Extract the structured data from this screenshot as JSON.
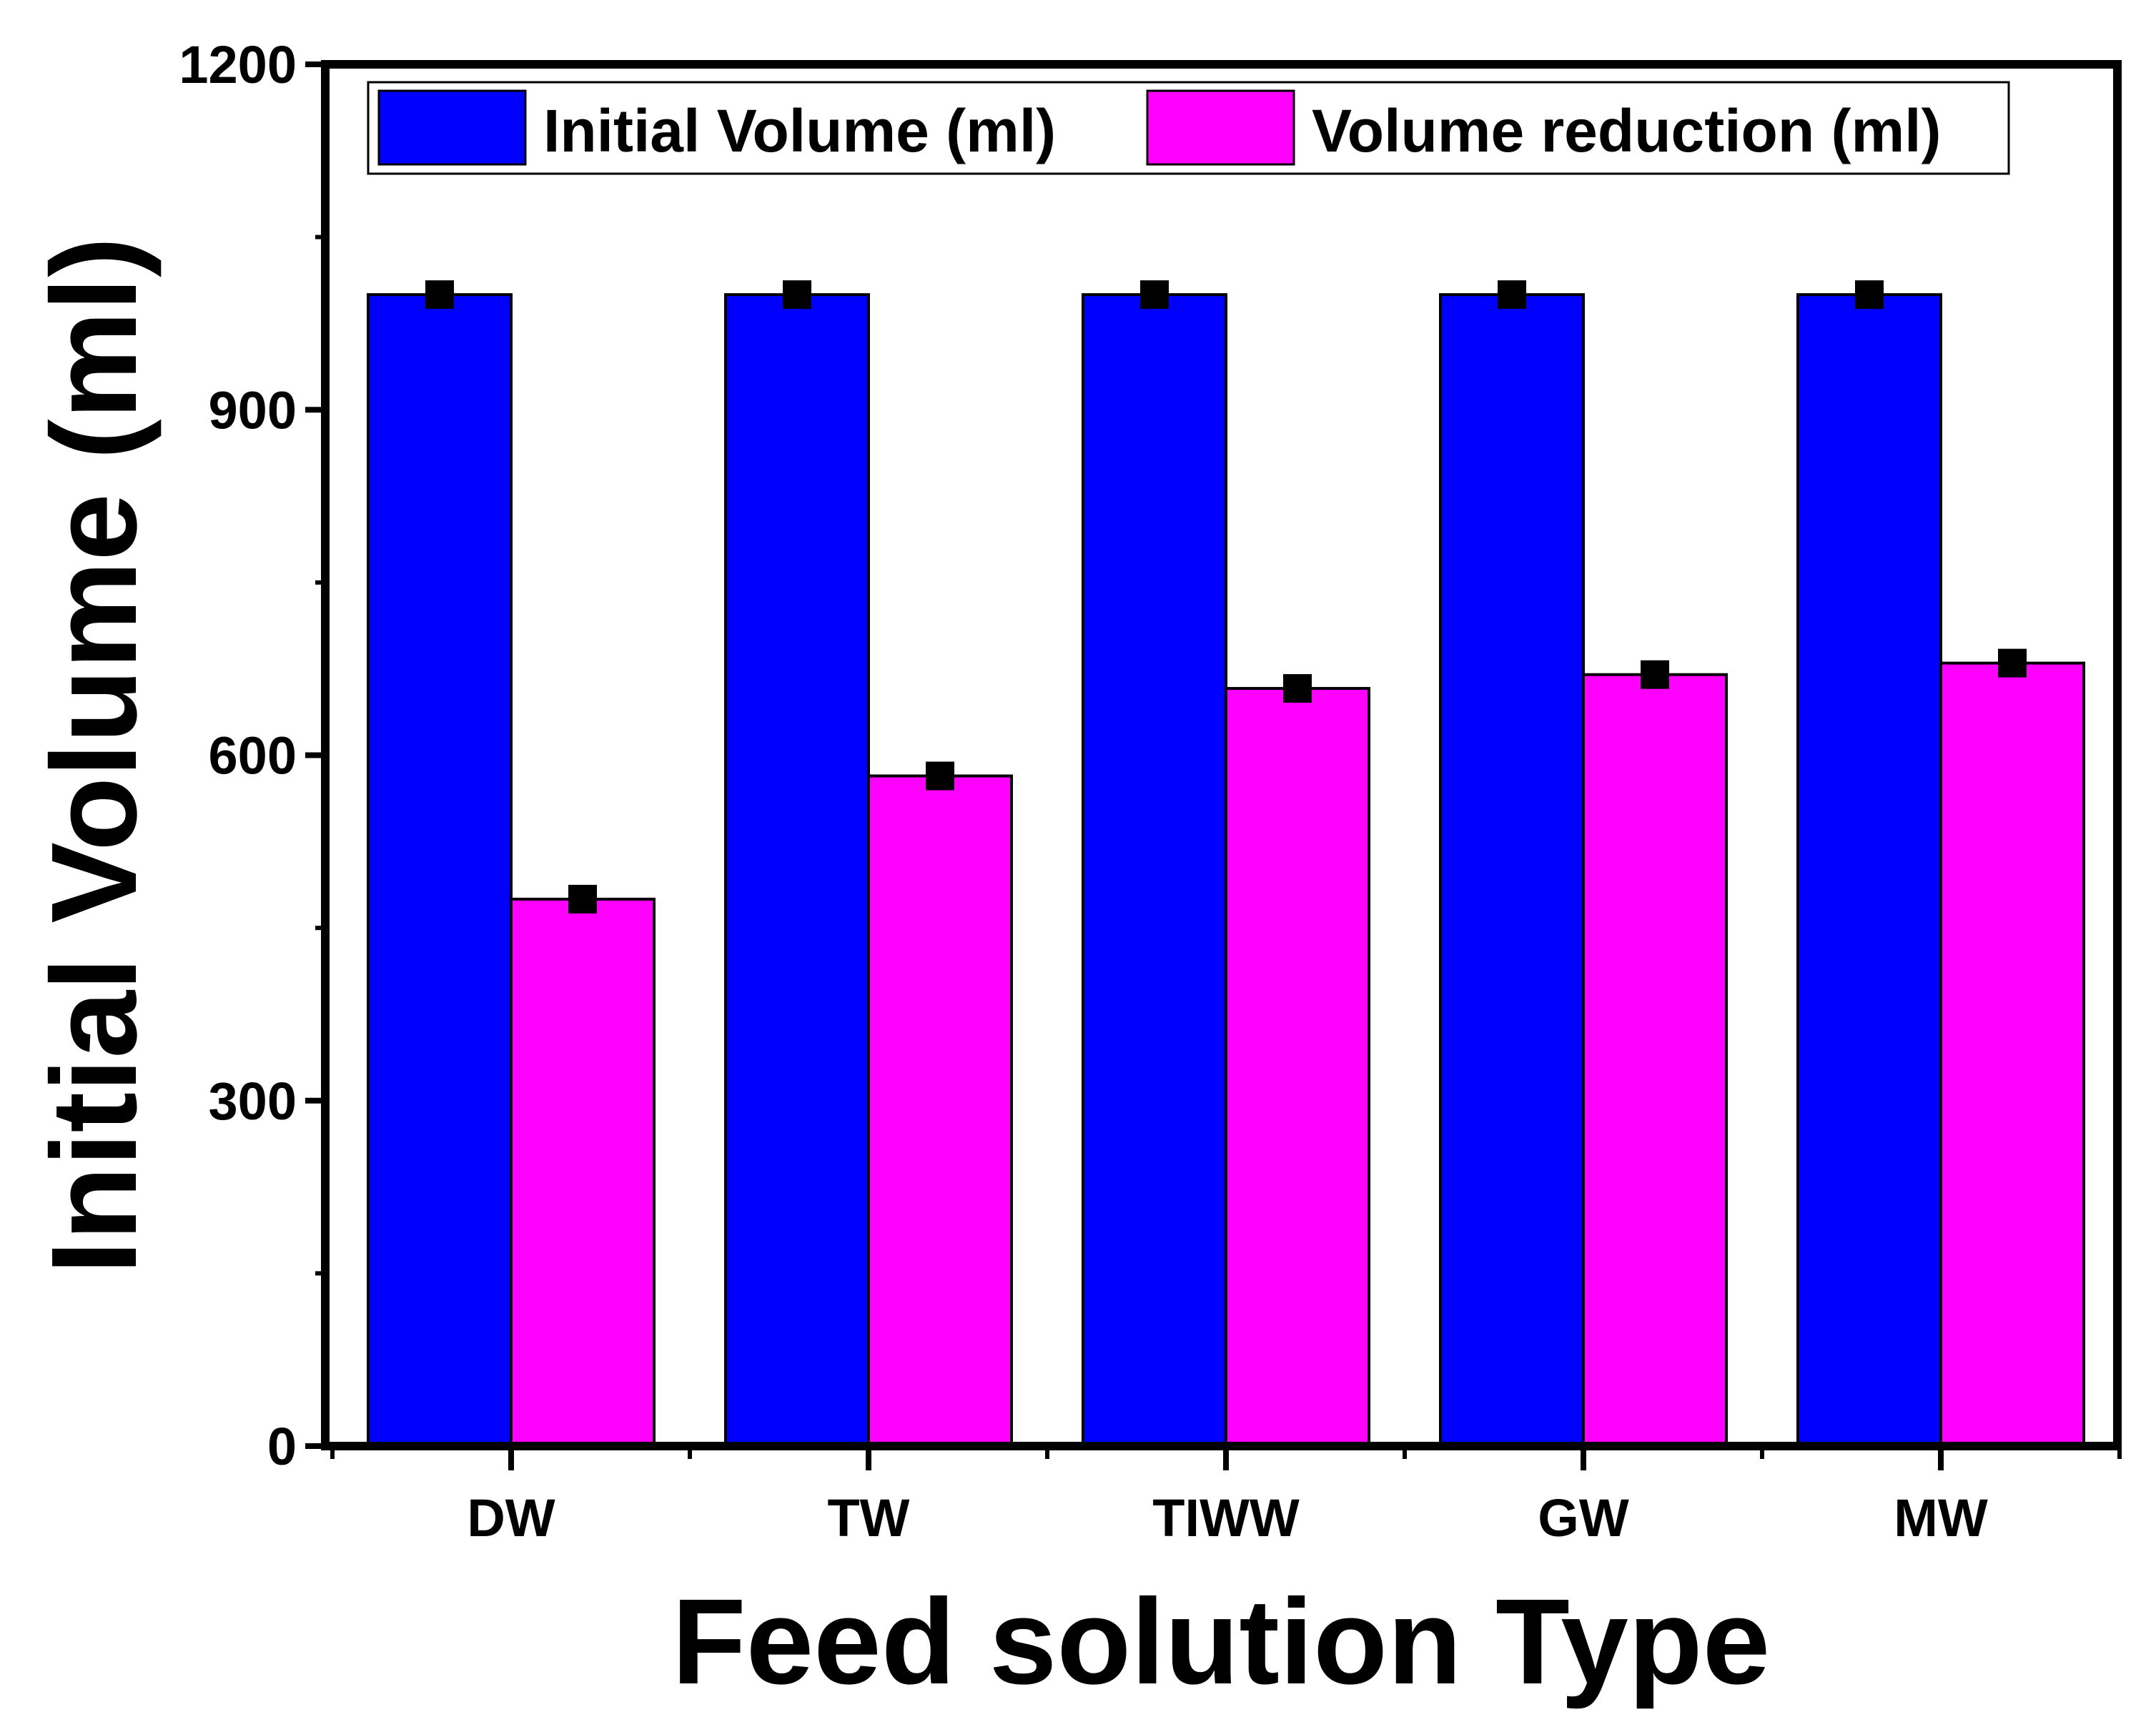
{
  "chart_data": {
    "type": "bar",
    "title": "",
    "xlabel": "Feed solution Type",
    "ylabel": "Initial Volume (ml)",
    "categories": [
      "DW",
      "TW",
      "TIWW",
      "GW",
      "MW"
    ],
    "ylim": [
      0,
      1200
    ],
    "yticks": [
      0,
      300,
      600,
      900,
      1200
    ],
    "series": [
      {
        "name": "Initial Volume (ml)",
        "color": "#0000ff",
        "values": [
          1000,
          1000,
          1000,
          1000,
          1000
        ],
        "errors": [
          10,
          10,
          10,
          10,
          10
        ]
      },
      {
        "name": "Volume reduction (ml)",
        "color": "#ff00ff",
        "values": [
          475,
          582,
          658,
          670,
          680
        ],
        "errors": [
          8,
          8,
          8,
          8,
          8
        ]
      }
    ],
    "legend_position": "top"
  }
}
